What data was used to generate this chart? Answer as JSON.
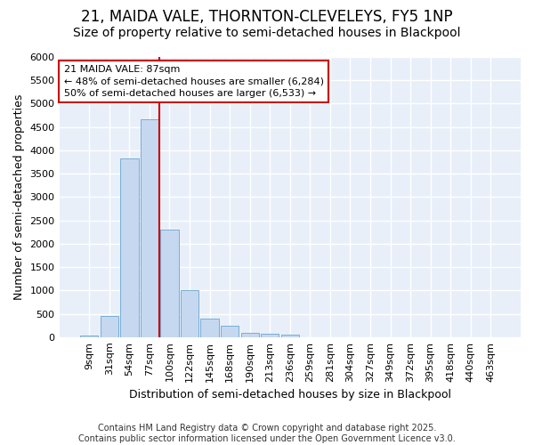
{
  "title_line1": "21, MAIDA VALE, THORNTON-CLEVELEYS, FY5 1NP",
  "title_line2": "Size of property relative to semi-detached houses in Blackpool",
  "xlabel": "Distribution of semi-detached houses by size in Blackpool",
  "ylabel": "Number of semi-detached properties",
  "categories": [
    "9sqm",
    "31sqm",
    "54sqm",
    "77sqm",
    "100sqm",
    "122sqm",
    "145sqm",
    "168sqm",
    "190sqm",
    "213sqm",
    "236sqm",
    "259sqm",
    "281sqm",
    "304sqm",
    "327sqm",
    "349sqm",
    "372sqm",
    "395sqm",
    "418sqm",
    "440sqm",
    "463sqm"
  ],
  "values": [
    30,
    450,
    3820,
    4670,
    2300,
    1000,
    400,
    250,
    100,
    70,
    50,
    0,
    0,
    0,
    0,
    0,
    0,
    0,
    0,
    0,
    0
  ],
  "bar_color": "#c5d8f0",
  "bar_edge_color": "#7aadd4",
  "vline_color": "#cc0000",
  "annotation_text": "21 MAIDA VALE: 87sqm\n← 48% of semi-detached houses are smaller (6,284)\n50% of semi-detached houses are larger (6,533) →",
  "annotation_box_edgecolor": "#cc0000",
  "ylim": [
    0,
    6000
  ],
  "yticks": [
    0,
    500,
    1000,
    1500,
    2000,
    2500,
    3000,
    3500,
    4000,
    4500,
    5000,
    5500,
    6000
  ],
  "plot_bg_color": "#e8eff9",
  "fig_bg_color": "#ffffff",
  "grid_color": "#ffffff",
  "footer": "Contains HM Land Registry data © Crown copyright and database right 2025.\nContains public sector information licensed under the Open Government Licence v3.0.",
  "title_fontsize": 12,
  "subtitle_fontsize": 10,
  "axis_label_fontsize": 9,
  "tick_fontsize": 8,
  "footer_fontsize": 7
}
